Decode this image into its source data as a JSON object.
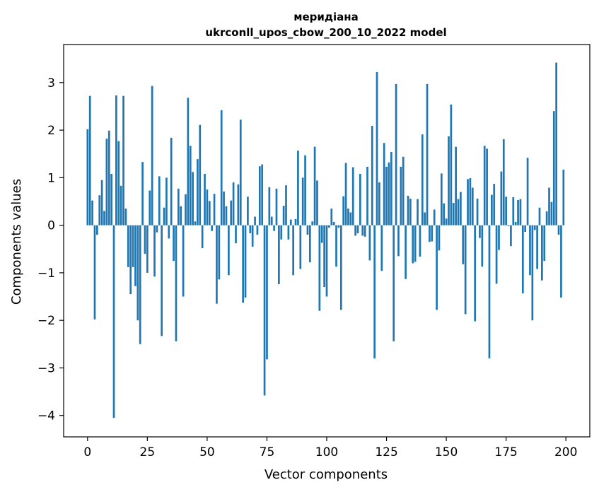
{
  "chart_data": {
    "type": "bar",
    "title": "меридіана",
    "subtitle": "ukrconll_upos_cbow_200_10_2022 model",
    "xlabel": "Vector components",
    "ylabel": "Components values",
    "xlim": [
      -10,
      210
    ],
    "ylim": [
      -4.45,
      3.8
    ],
    "xticks": [
      0,
      25,
      50,
      75,
      100,
      125,
      150,
      175,
      200
    ],
    "yticks": [
      -4,
      -3,
      -2,
      -1,
      0,
      1,
      2,
      3
    ],
    "grid": false,
    "legend": "none",
    "bar_color": "#1f77b4",
    "x": [
      0,
      1,
      2,
      3,
      4,
      5,
      6,
      7,
      8,
      9,
      10,
      11,
      12,
      13,
      14,
      15,
      16,
      17,
      18,
      19,
      20,
      21,
      22,
      23,
      24,
      25,
      26,
      27,
      28,
      29,
      30,
      31,
      32,
      33,
      34,
      35,
      36,
      37,
      38,
      39,
      40,
      41,
      42,
      43,
      44,
      45,
      46,
      47,
      48,
      49,
      50,
      51,
      52,
      53,
      54,
      55,
      56,
      57,
      58,
      59,
      60,
      61,
      62,
      63,
      64,
      65,
      66,
      67,
      68,
      69,
      70,
      71,
      72,
      73,
      74,
      75,
      76,
      77,
      78,
      79,
      80,
      81,
      82,
      83,
      84,
      85,
      86,
      87,
      88,
      89,
      90,
      91,
      92,
      93,
      94,
      95,
      96,
      97,
      98,
      99,
      100,
      101,
      102,
      103,
      104,
      105,
      106,
      107,
      108,
      109,
      110,
      111,
      112,
      113,
      114,
      115,
      116,
      117,
      118,
      119,
      120,
      121,
      122,
      123,
      124,
      125,
      126,
      127,
      128,
      129,
      130,
      131,
      132,
      133,
      134,
      135,
      136,
      137,
      138,
      139,
      140,
      141,
      142,
      143,
      144,
      145,
      146,
      147,
      148,
      149,
      150,
      151,
      152,
      153,
      154,
      155,
      156,
      157,
      158,
      159,
      160,
      161,
      162,
      163,
      164,
      165,
      166,
      167,
      168,
      169,
      170,
      171,
      172,
      173,
      174,
      175,
      176,
      177,
      178,
      179,
      180,
      181,
      182,
      183,
      184,
      185,
      186,
      187,
      188,
      189,
      190,
      191,
      192,
      193,
      194,
      195,
      196,
      197,
      198,
      199
    ],
    "values": [
      2.02,
      2.72,
      0.52,
      -1.98,
      -0.2,
      0.63,
      0.95,
      0.3,
      1.82,
      1.99,
      1.08,
      -4.05,
      2.73,
      1.77,
      0.83,
      2.72,
      0.35,
      -0.88,
      -1.45,
      -0.88,
      -1.28,
      -2.0,
      -2.5,
      1.33,
      -0.6,
      -1.0,
      0.73,
      2.93,
      -1.08,
      -0.15,
      1.03,
      -2.33,
      0.37,
      1.0,
      -0.28,
      1.84,
      -0.75,
      -2.44,
      0.77,
      0.4,
      -1.5,
      0.65,
      2.68,
      1.67,
      1.12,
      0.08,
      1.39,
      2.11,
      -0.48,
      1.08,
      0.75,
      0.51,
      -0.12,
      0.66,
      -1.65,
      -1.14,
      2.42,
      0.71,
      0.4,
      -1.05,
      0.52,
      0.9,
      -0.38,
      0.86,
      2.22,
      -1.63,
      -1.52,
      0.6,
      -0.17,
      -0.45,
      0.18,
      -0.2,
      1.24,
      1.28,
      -3.58,
      -2.82,
      0.8,
      0.18,
      -0.12,
      0.77,
      -1.24,
      -0.3,
      0.41,
      0.84,
      -0.3,
      0.12,
      -1.05,
      0.13,
      1.57,
      -0.92,
      1.0,
      1.47,
      -0.2,
      -0.78,
      0.08,
      1.65,
      0.94,
      -1.8,
      -0.37,
      -1.3,
      -1.5,
      -0.05,
      0.35,
      0.07,
      -0.87,
      -0.05,
      -1.78,
      0.61,
      1.31,
      0.35,
      0.27,
      1.22,
      -0.22,
      -0.17,
      1.08,
      -0.22,
      -0.24,
      1.23,
      -0.74,
      2.09,
      -2.8,
      3.22,
      0.9,
      -0.96,
      1.73,
      1.23,
      1.32,
      1.54,
      -2.44,
      2.97,
      -0.65,
      1.23,
      1.44,
      -1.13,
      0.62,
      0.56,
      -0.8,
      -0.77,
      0.55,
      -0.66,
      1.91,
      0.27,
      2.97,
      -0.35,
      -0.34,
      0.33,
      -1.78,
      -0.53,
      1.09,
      0.46,
      0.14,
      1.87,
      2.54,
      0.47,
      1.65,
      0.55,
      0.7,
      -0.82,
      -1.87,
      0.97,
      0.99,
      0.79,
      -2.02,
      0.56,
      -0.27,
      -0.87,
      1.67,
      1.61,
      -2.8,
      0.64,
      0.87,
      -1.23,
      -0.52,
      1.13,
      1.81,
      0.6,
      -0.02,
      -0.44,
      0.59,
      0.07,
      0.53,
      0.55,
      -1.43,
      -0.14,
      1.42,
      -1.05,
      -2.0,
      -0.1,
      -0.92,
      0.37,
      -1.16,
      -0.75,
      0.29,
      0.79,
      0.49,
      2.4,
      3.42,
      -0.2,
      -1.52,
      1.17
    ]
  }
}
